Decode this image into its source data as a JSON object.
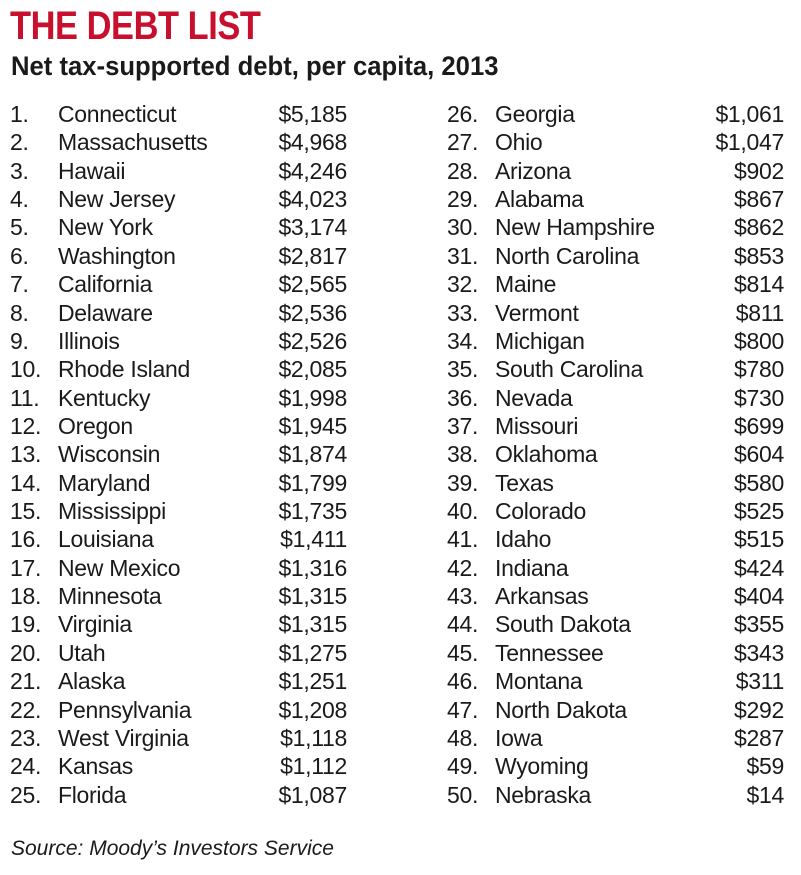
{
  "chart_data": {
    "type": "table",
    "title": "THE DEBT LIST",
    "subtitle": "Net tax-supported debt, per capita, 2013",
    "source": "Source: Moody’s Investors Service",
    "columns": [
      "rank",
      "state",
      "debt_per_capita"
    ],
    "rows": [
      {
        "rank": "1.",
        "state": "Connecticut",
        "value": "$5,185"
      },
      {
        "rank": "2.",
        "state": "Massachusetts",
        "value": "$4,968"
      },
      {
        "rank": "3.",
        "state": "Hawaii",
        "value": "$4,246"
      },
      {
        "rank": "4.",
        "state": "New Jersey",
        "value": "$4,023"
      },
      {
        "rank": "5.",
        "state": "New York",
        "value": "$3,174"
      },
      {
        "rank": "6.",
        "state": "Washington",
        "value": "$2,817"
      },
      {
        "rank": "7.",
        "state": "California",
        "value": "$2,565"
      },
      {
        "rank": "8.",
        "state": "Delaware",
        "value": "$2,536"
      },
      {
        "rank": "9.",
        "state": "Illinois",
        "value": "$2,526"
      },
      {
        "rank": "10.",
        "state": "Rhode Island",
        "value": "$2,085"
      },
      {
        "rank": "11.",
        "state": "Kentucky",
        "value": "$1,998"
      },
      {
        "rank": "12.",
        "state": "Oregon",
        "value": "$1,945"
      },
      {
        "rank": "13.",
        "state": "Wisconsin",
        "value": "$1,874"
      },
      {
        "rank": "14.",
        "state": "Maryland",
        "value": "$1,799"
      },
      {
        "rank": "15.",
        "state": "Mississippi",
        "value": "$1,735"
      },
      {
        "rank": "16.",
        "state": "Louisiana",
        "value": "$1,411"
      },
      {
        "rank": "17.",
        "state": "New Mexico",
        "value": "$1,316"
      },
      {
        "rank": "18.",
        "state": "Minnesota",
        "value": "$1,315"
      },
      {
        "rank": "19.",
        "state": "Virginia",
        "value": "$1,315"
      },
      {
        "rank": "20.",
        "state": "Utah",
        "value": "$1,275"
      },
      {
        "rank": "21.",
        "state": "Alaska",
        "value": "$1,251"
      },
      {
        "rank": "22.",
        "state": "Pennsylvania",
        "value": "$1,208"
      },
      {
        "rank": "23.",
        "state": "West Virginia",
        "value": "$1,118"
      },
      {
        "rank": "24.",
        "state": "Kansas",
        "value": "$1,112"
      },
      {
        "rank": "25.",
        "state": "Florida",
        "value": "$1,087"
      },
      {
        "rank": "26.",
        "state": "Georgia",
        "value": "$1,061"
      },
      {
        "rank": "27.",
        "state": "Ohio",
        "value": "$1,047"
      },
      {
        "rank": "28.",
        "state": "Arizona",
        "value": "$902"
      },
      {
        "rank": "29.",
        "state": "Alabama",
        "value": "$867"
      },
      {
        "rank": "30.",
        "state": "New Hampshire",
        "value": "$862"
      },
      {
        "rank": "31.",
        "state": "North Carolina",
        "value": "$853"
      },
      {
        "rank": "32.",
        "state": "Maine",
        "value": "$814"
      },
      {
        "rank": "33.",
        "state": "Vermont",
        "value": "$811"
      },
      {
        "rank": "34.",
        "state": "Michigan",
        "value": "$800"
      },
      {
        "rank": "35.",
        "state": "South Carolina",
        "value": "$780"
      },
      {
        "rank": "36.",
        "state": "Nevada",
        "value": "$730"
      },
      {
        "rank": "37.",
        "state": "Missouri",
        "value": "$699"
      },
      {
        "rank": "38.",
        "state": "Oklahoma",
        "value": "$604"
      },
      {
        "rank": "39.",
        "state": "Texas",
        "value": "$580"
      },
      {
        "rank": "40.",
        "state": "Colorado",
        "value": "$525"
      },
      {
        "rank": "41.",
        "state": "Idaho",
        "value": "$515"
      },
      {
        "rank": "42.",
        "state": "Indiana",
        "value": "$424"
      },
      {
        "rank": "43.",
        "state": "Arkansas",
        "value": "$404"
      },
      {
        "rank": "44.",
        "state": "South Dakota",
        "value": "$355"
      },
      {
        "rank": "45.",
        "state": "Tennessee",
        "value": "$343"
      },
      {
        "rank": "46.",
        "state": "Montana",
        "value": "$311"
      },
      {
        "rank": "47.",
        "state": "North Dakota",
        "value": "$292"
      },
      {
        "rank": "48.",
        "state": "Iowa",
        "value": "$287"
      },
      {
        "rank": "49.",
        "state": "Wyoming",
        "value": "$59"
      },
      {
        "rank": "50.",
        "state": "Nebraska",
        "value": "$14"
      }
    ]
  },
  "colors": {
    "title": "#c8102e",
    "text": "#1a1a1a",
    "background": "#ffffff"
  }
}
